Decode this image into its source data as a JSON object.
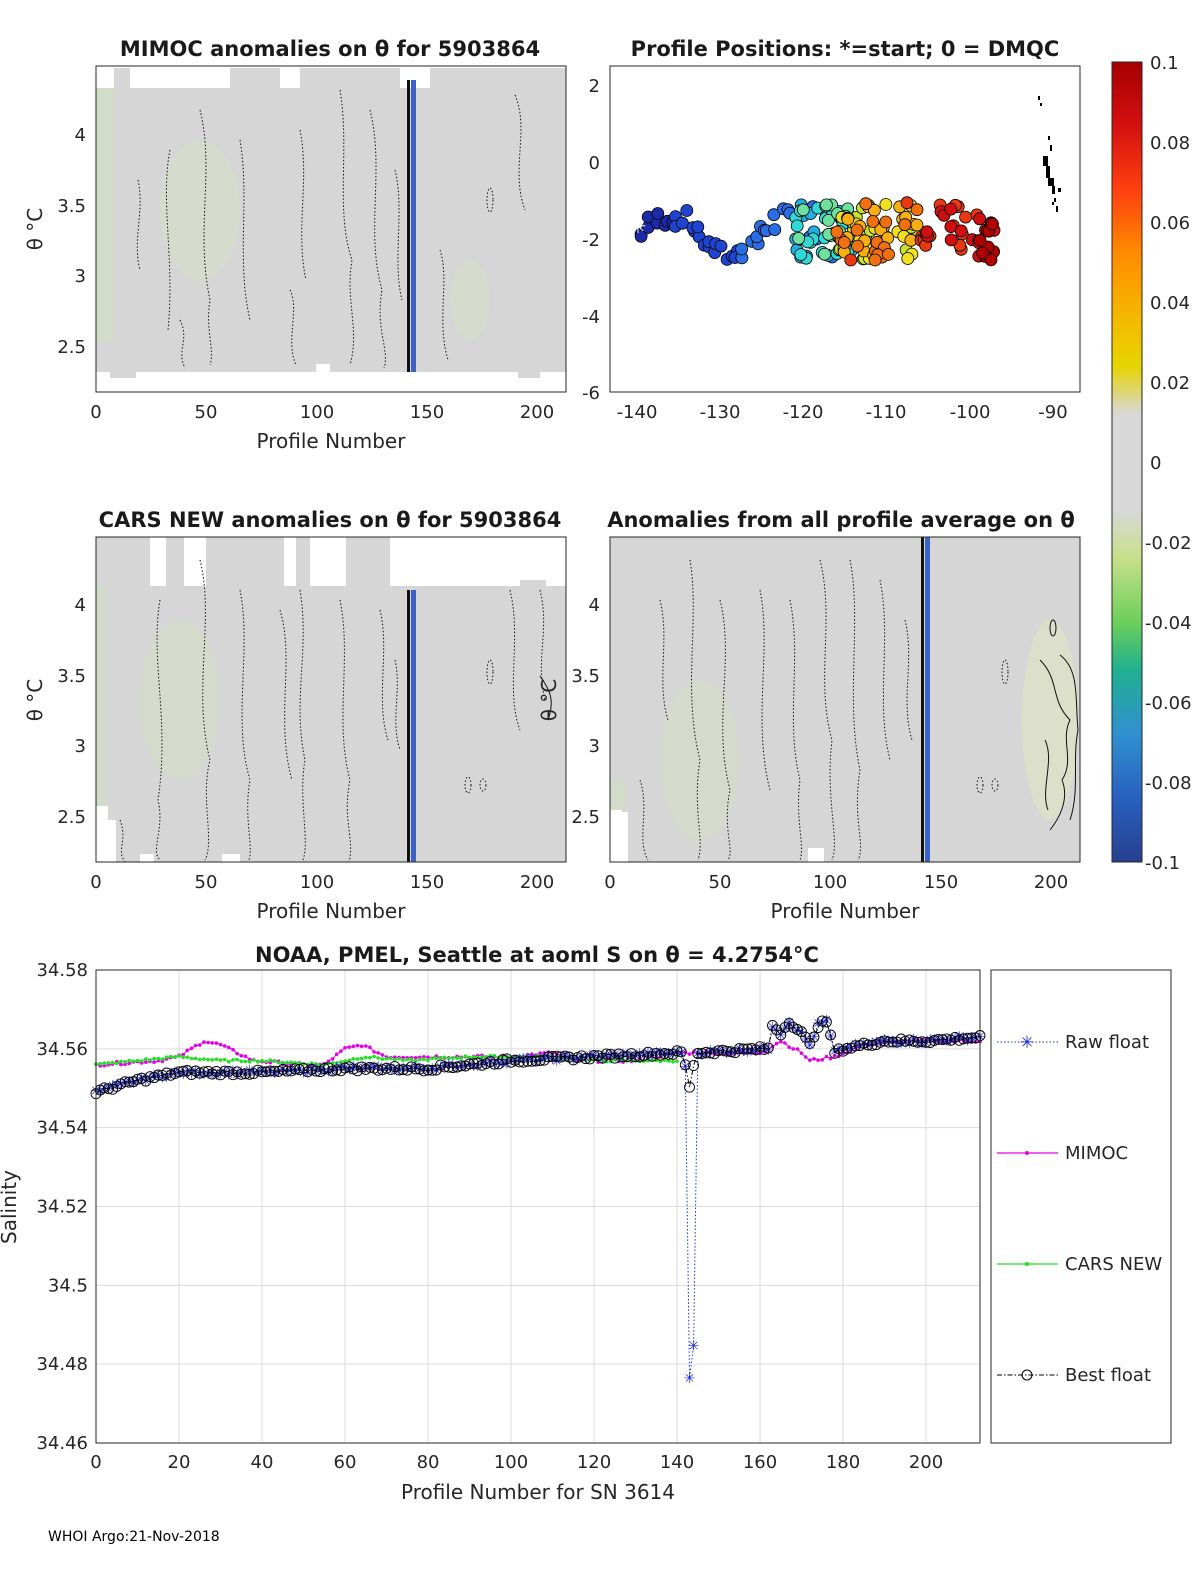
{
  "colors": {
    "panel_fill": "#d6d6d6",
    "raw_float": "#1f2ad8",
    "mimoc": "#e600e6",
    "cars_new": "#22e022",
    "best_float": "#000000",
    "marker_vline": "#3a63c8"
  },
  "panels": {
    "mimoc": {
      "title": "MIMOC anomalies on θ  for 5903864",
      "ylabel": "θ °C",
      "xlabel": "Profile Number",
      "xticks": [
        "0",
        "50",
        "100",
        "150",
        "200"
      ],
      "yticks": [
        "4",
        "3.5",
        "3",
        "2.5"
      ]
    },
    "positions": {
      "title": "Profile Positions: *=start; 0 = DMQC",
      "xticks": [
        "-140",
        "-130",
        "-120",
        "-110",
        "-100",
        "-90"
      ],
      "yticks": [
        "2",
        "0",
        "-2",
        "-4",
        "-6"
      ]
    },
    "cars": {
      "title": "CARS NEW anomalies on θ for 5903864",
      "ylabel": "θ °C",
      "xlabel": "Profile Number",
      "xticks": [
        "0",
        "50",
        "100",
        "150",
        "200"
      ],
      "yticks": [
        "4",
        "3.5",
        "3",
        "2.5"
      ]
    },
    "allavg": {
      "title": "Anomalies from all profile average on θ",
      "ylabel": "θ °C",
      "xlabel": "Profile Number",
      "xticks": [
        "0",
        "50",
        "100",
        "150",
        "200"
      ],
      "yticks": [
        "4",
        "3.5",
        "3",
        "2.5"
      ]
    }
  },
  "colorbar": {
    "ticks": [
      "0.1",
      "0.08",
      "0.06",
      "0.04",
      "0.02",
      "0",
      "-0.02",
      "-0.04",
      "-0.06",
      "-0.08",
      "-0.1"
    ]
  },
  "chart_data": {
    "type": "line",
    "title": "NOAA, PMEL, Seattle at aoml S on θ = 4.2754°C",
    "xlabel": "Profile Number for SN 3614",
    "ylabel": "Salinity",
    "xlim": [
      0,
      213
    ],
    "ylim": [
      34.46,
      34.58
    ],
    "xticks": [
      "0",
      "20",
      "40",
      "60",
      "80",
      "100",
      "120",
      "140",
      "160",
      "180",
      "200"
    ],
    "yticks": [
      "34.58",
      "34.56",
      "34.54",
      "34.52",
      "34.5",
      "34.48",
      "34.46"
    ],
    "anchors": {
      "best": [
        [
          0,
          34.549
        ],
        [
          10,
          34.552
        ],
        [
          20,
          34.554
        ],
        [
          40,
          34.554
        ],
        [
          60,
          34.555
        ],
        [
          80,
          34.555
        ],
        [
          100,
          34.557
        ],
        [
          120,
          34.558
        ],
        [
          140,
          34.559
        ],
        [
          141,
          34.559
        ],
        [
          142,
          34.556
        ],
        [
          143,
          34.55
        ],
        [
          144,
          34.556
        ],
        [
          145,
          34.559
        ],
        [
          160,
          34.56
        ],
        [
          162,
          34.56
        ],
        [
          163,
          34.566
        ],
        [
          165,
          34.564
        ],
        [
          167,
          34.567
        ],
        [
          170,
          34.564
        ],
        [
          172,
          34.561
        ],
        [
          174,
          34.566
        ],
        [
          176,
          34.567
        ],
        [
          178,
          34.559
        ],
        [
          180,
          34.56
        ],
        [
          190,
          34.562
        ],
        [
          200,
          34.562
        ],
        [
          213,
          34.563
        ]
      ],
      "raw": [
        [
          0,
          34.549
        ],
        [
          10,
          34.552
        ],
        [
          20,
          34.554
        ],
        [
          40,
          34.554
        ],
        [
          60,
          34.555
        ],
        [
          80,
          34.555
        ],
        [
          100,
          34.557
        ],
        [
          120,
          34.558
        ],
        [
          141,
          34.559
        ],
        [
          142,
          34.556
        ],
        [
          143,
          34.476
        ],
        [
          144,
          34.485
        ],
        [
          145,
          34.559
        ],
        [
          160,
          34.56
        ],
        [
          162,
          34.56
        ],
        [
          163,
          34.566
        ],
        [
          165,
          34.564
        ],
        [
          167,
          34.567
        ],
        [
          170,
          34.564
        ],
        [
          172,
          34.561
        ],
        [
          174,
          34.566
        ],
        [
          176,
          34.567
        ],
        [
          178,
          34.559
        ],
        [
          180,
          34.56
        ],
        [
          190,
          34.562
        ],
        [
          200,
          34.562
        ],
        [
          213,
          34.563
        ]
      ],
      "mimoc": [
        [
          0,
          34.556
        ],
        [
          15,
          34.557
        ],
        [
          20,
          34.558
        ],
        [
          26,
          34.562
        ],
        [
          30,
          34.561
        ],
        [
          38,
          34.557
        ],
        [
          50,
          34.556
        ],
        [
          55,
          34.556
        ],
        [
          60,
          34.56
        ],
        [
          64,
          34.561
        ],
        [
          70,
          34.558
        ],
        [
          80,
          34.558
        ],
        [
          90,
          34.558
        ],
        [
          100,
          34.558
        ],
        [
          110,
          34.559
        ],
        [
          115,
          34.557
        ],
        [
          120,
          34.557
        ],
        [
          130,
          34.557
        ],
        [
          140,
          34.559
        ],
        [
          150,
          34.559
        ],
        [
          160,
          34.559
        ],
        [
          165,
          34.562
        ],
        [
          170,
          34.559
        ],
        [
          172,
          34.557
        ],
        [
          178,
          34.558
        ],
        [
          185,
          34.561
        ],
        [
          195,
          34.562
        ],
        [
          213,
          34.562
        ]
      ],
      "cars": [
        [
          0,
          34.556
        ],
        [
          10,
          34.557
        ],
        [
          20,
          34.558
        ],
        [
          30,
          34.557
        ],
        [
          40,
          34.557
        ],
        [
          55,
          34.556
        ],
        [
          65,
          34.558
        ],
        [
          75,
          34.557
        ],
        [
          90,
          34.558
        ],
        [
          110,
          34.558
        ],
        [
          120,
          34.557
        ],
        [
          130,
          34.557
        ],
        [
          140,
          34.557
        ]
      ]
    },
    "legend": [
      "Raw float",
      "MIMOC",
      "CARS NEW",
      "Best float"
    ]
  },
  "footer": "WHOI Argo:21-Nov-2018"
}
